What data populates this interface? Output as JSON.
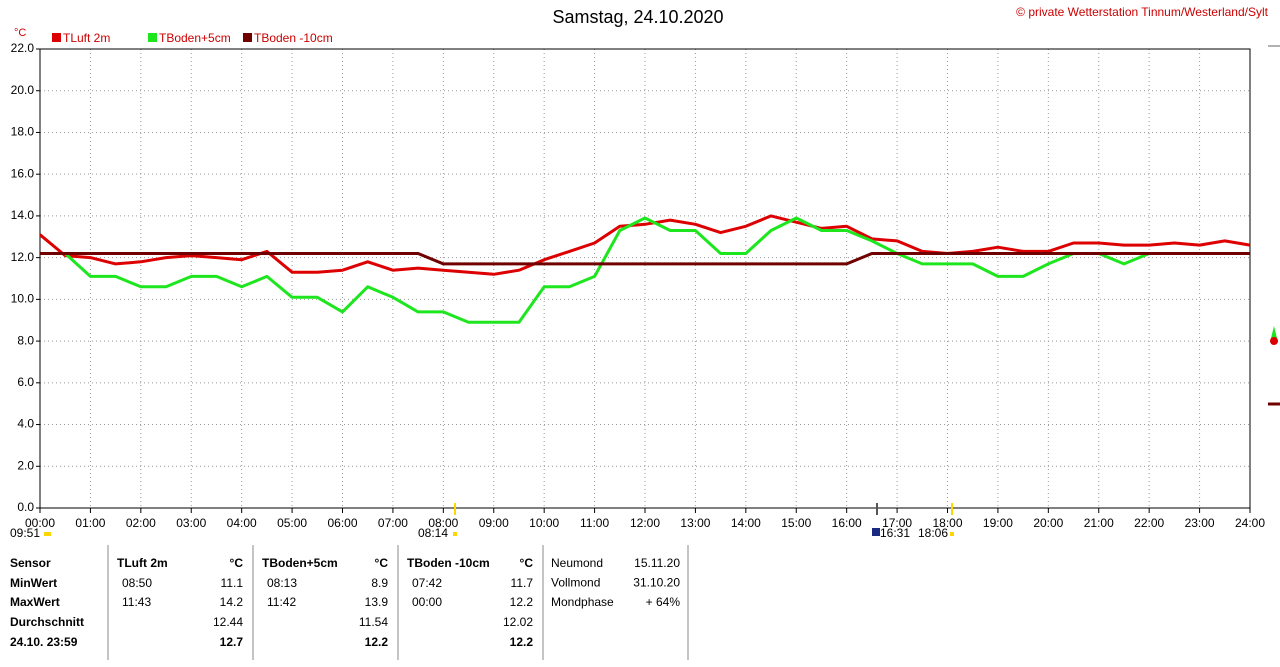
{
  "chart_data": {
    "type": "line",
    "title": "Samstag, 24.10.2020",
    "copyright": "© private Wetterstation Tinnum/Westerland/Sylt",
    "y_unit": "°C",
    "x": [
      0,
      0.5,
      1,
      1.5,
      2,
      2.5,
      3,
      3.5,
      4,
      4.5,
      5,
      5.5,
      6,
      6.5,
      7,
      7.5,
      8,
      8.5,
      9,
      9.5,
      10,
      10.5,
      11,
      11.5,
      12,
      12.5,
      13,
      13.5,
      14,
      14.5,
      15,
      15.5,
      16,
      16.5,
      17,
      17.5,
      18,
      18.5,
      19,
      19.5,
      20,
      20.5,
      21,
      21.5,
      22,
      22.5,
      23,
      23.5,
      24
    ],
    "xlim": [
      0,
      24
    ],
    "xticks": [
      {
        "value": 0,
        "label": "00:00"
      },
      {
        "value": 1,
        "label": "01:00"
      },
      {
        "value": 2,
        "label": "02:00"
      },
      {
        "value": 3,
        "label": "03:00"
      },
      {
        "value": 4,
        "label": "04:00"
      },
      {
        "value": 5,
        "label": "05:00"
      },
      {
        "value": 6,
        "label": "06:00"
      },
      {
        "value": 7,
        "label": "07:00"
      },
      {
        "value": 8,
        "label": "08:00"
      },
      {
        "value": 9,
        "label": "09:00"
      },
      {
        "value": 10,
        "label": "10:00"
      },
      {
        "value": 11,
        "label": "11:00"
      },
      {
        "value": 12,
        "label": "12:00"
      },
      {
        "value": 13,
        "label": "13:00"
      },
      {
        "value": 14,
        "label": "14:00"
      },
      {
        "value": 15,
        "label": "15:00"
      },
      {
        "value": 16,
        "label": "16:00"
      },
      {
        "value": 17,
        "label": "17:00"
      },
      {
        "value": 18,
        "label": "18:00"
      },
      {
        "value": 19,
        "label": "19:00"
      },
      {
        "value": 20,
        "label": "20:00"
      },
      {
        "value": 21,
        "label": "21:00"
      },
      {
        "value": 22,
        "label": "22:00"
      },
      {
        "value": 23,
        "label": "23:00"
      },
      {
        "value": 24,
        "label": "24:00"
      }
    ],
    "ylim": [
      0,
      22
    ],
    "yticks": [
      {
        "value": 0,
        "label": "0.0"
      },
      {
        "value": 2,
        "label": "2.0"
      },
      {
        "value": 4,
        "label": "4.0"
      },
      {
        "value": 6,
        "label": "6.0"
      },
      {
        "value": 8,
        "label": "8.0"
      },
      {
        "value": 10,
        "label": "10.0"
      },
      {
        "value": 12,
        "label": "12.0"
      },
      {
        "value": 14,
        "label": "14.0"
      },
      {
        "value": 16,
        "label": "16.0"
      },
      {
        "value": 18,
        "label": "18.0"
      },
      {
        "value": 20,
        "label": "20.0"
      },
      {
        "value": 22,
        "label": "22.0"
      }
    ],
    "grid": true,
    "series": [
      {
        "name": "TLuft 2m",
        "color": "#dd0000",
        "values": [
          13.1,
          12.1,
          12.0,
          11.7,
          11.8,
          12.0,
          12.1,
          12.0,
          11.9,
          12.3,
          11.3,
          11.3,
          11.4,
          11.8,
          11.4,
          11.5,
          11.4,
          11.3,
          11.2,
          11.4,
          11.9,
          12.3,
          12.7,
          13.5,
          13.6,
          13.8,
          13.6,
          13.2,
          13.5,
          14.0,
          13.7,
          13.4,
          13.5,
          12.9,
          12.8,
          12.3,
          12.2,
          12.3,
          12.5,
          12.3,
          12.3,
          12.7,
          12.7,
          12.6,
          12.6,
          12.7,
          12.6,
          12.8,
          12.6
        ]
      },
      {
        "name": "TBoden+5cm",
        "color": "#1ee61e",
        "values": [
          null,
          12.2,
          11.1,
          11.1,
          10.6,
          10.6,
          11.1,
          11.1,
          10.6,
          11.1,
          10.1,
          10.1,
          9.4,
          10.6,
          10.1,
          9.4,
          9.4,
          8.9,
          8.9,
          8.9,
          10.6,
          10.6,
          11.1,
          13.3,
          13.9,
          13.3,
          13.3,
          12.2,
          12.2,
          13.3,
          13.9,
          13.3,
          13.3,
          12.8,
          12.2,
          11.7,
          11.7,
          11.7,
          11.1,
          11.1,
          11.7,
          12.2,
          12.2,
          11.7,
          12.2,
          12.2,
          12.2,
          12.2,
          12.2
        ]
      },
      {
        "name": "TBoden -10cm",
        "color": "#700000",
        "values": [
          12.2,
          12.2,
          12.2,
          12.2,
          12.2,
          12.2,
          12.2,
          12.2,
          12.2,
          12.2,
          12.2,
          12.2,
          12.2,
          12.2,
          12.2,
          12.2,
          11.7,
          11.7,
          11.7,
          11.7,
          11.7,
          11.7,
          11.7,
          11.7,
          11.7,
          11.7,
          11.7,
          11.7,
          11.7,
          11.7,
          11.7,
          11.7,
          11.7,
          12.2,
          12.2,
          12.2,
          12.2,
          12.2,
          12.2,
          12.2,
          12.2,
          12.2,
          12.2,
          12.2,
          12.2,
          12.2,
          12.2,
          12.2,
          12.2
        ]
      }
    ],
    "annotations": [
      "09:51",
      "08:14",
      "16:31",
      "18:06"
    ]
  },
  "table": {
    "sensor_labels": [
      "Sensor",
      "MinWert",
      "MaxWert",
      "Durchschnitt",
      "24.10. 23:59"
    ],
    "sensors": [
      {
        "name": "TLuft 2m",
        "unit": "°C",
        "min_time": "08:50",
        "min": "11.1",
        "max_time": "11:43",
        "max": "14.2",
        "avg": "12.44",
        "current": "12.7"
      },
      {
        "name": "TBoden+5cm",
        "unit": "°C",
        "min_time": "08:13",
        "min": "8.9",
        "max_time": "11:42",
        "max": "13.9",
        "avg": "11.54",
        "current": "12.2"
      },
      {
        "name": "TBoden -10cm",
        "unit": "°C",
        "min_time": "07:42",
        "min": "11.7",
        "max_time": "00:00",
        "max": "12.2",
        "avg": "12.02",
        "current": "12.2"
      }
    ],
    "moon": [
      {
        "label": "Neumond",
        "value": "15.11.20"
      },
      {
        "label": "Vollmond",
        "value": "31.10.20"
      },
      {
        "label": "Mondphase",
        "value": "+ 64%"
      }
    ]
  }
}
